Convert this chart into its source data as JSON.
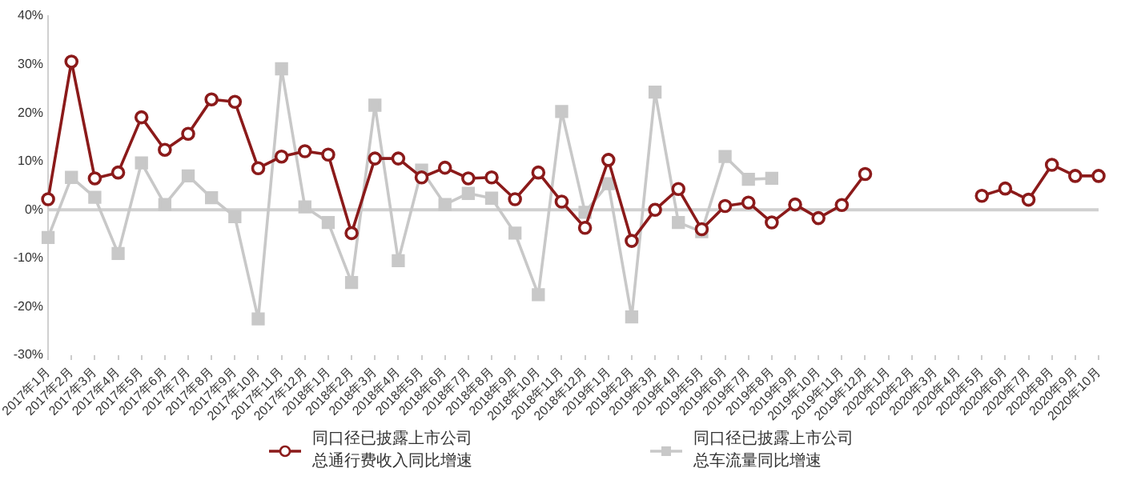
{
  "chart_data": {
    "type": "line",
    "categories": [
      "2017年1月",
      "2017年2月",
      "2017年3月",
      "2017年4月",
      "2017年5月",
      "2017年6月",
      "2017年7月",
      "2017年8月",
      "2017年9月",
      "2017年10月",
      "2017年11月",
      "2017年12月",
      "2018年1月",
      "2018年2月",
      "2018年3月",
      "2018年4月",
      "2018年5月",
      "2018年6月",
      "2018年7月",
      "2018年8月",
      "2018年9月",
      "2018年10月",
      "2018年11月",
      "2018年12月",
      "2019年1月",
      "2019年2月",
      "2019年3月",
      "2019年4月",
      "2019年5月",
      "2019年6月",
      "2019年7月",
      "2019年8月",
      "2019年9月",
      "2019年10月",
      "2019年11月",
      "2019年12月",
      "2020年1月",
      "2020年2月",
      "2020年3月",
      "2020年4月",
      "2020年5月",
      "2020年6月",
      "2020年7月",
      "2020年8月",
      "2020年9月",
      "2020年10月"
    ],
    "series": [
      {
        "name": "同口径已披露上市公司总通行费收入同比增速",
        "color": "#8b1a1a",
        "marker": "circle",
        "values": [
          2.2,
          30.6,
          6.5,
          7.7,
          19.1,
          12.4,
          15.7,
          22.8,
          22.3,
          8.6,
          11,
          12.1,
          11.4,
          -4.8,
          10.6,
          10.6,
          6.7,
          8.7,
          6.5,
          6.7,
          2.2,
          7.7,
          1.7,
          -3.7,
          10.3,
          -6.4,
          0,
          4.3,
          -4,
          0.8,
          1.5,
          -2.6,
          1.1,
          -1.7,
          1,
          7.4,
          null,
          null,
          null,
          null,
          2.9,
          4.4,
          2.1,
          9.3,
          7,
          7
        ]
      },
      {
        "name": "同口径已披露上市公司总车流量同比增速",
        "color": "#c8c8c8",
        "marker": "square",
        "values": [
          -5.7,
          6.7,
          2.6,
          -9,
          9.7,
          1.1,
          7,
          2.5,
          -1.4,
          -22.5,
          29.1,
          0.6,
          -2.6,
          -15,
          21.6,
          -10.5,
          8.2,
          1.1,
          3.4,
          2.4,
          -4.8,
          -17.5,
          20.3,
          -0.5,
          5.4,
          -22.1,
          24.3,
          -2.6,
          -4.5,
          11,
          6.3,
          6.5,
          null,
          null,
          null,
          null,
          null,
          null,
          null,
          null,
          null,
          null,
          null,
          null,
          null,
          null
        ]
      }
    ],
    "ylim": [
      -30,
      40
    ],
    "yticks": [
      {
        "value": -30,
        "label": "-30%"
      },
      {
        "value": -20,
        "label": "-20%"
      },
      {
        "value": -10,
        "label": "-10%"
      },
      {
        "value": 0,
        "label": "0%"
      },
      {
        "value": 10,
        "label": "10%"
      },
      {
        "value": 20,
        "label": "20%"
      },
      {
        "value": 30,
        "label": "30%"
      },
      {
        "value": 40,
        "label": "40%"
      }
    ],
    "ref_lines": [
      {
        "axis": "y",
        "value": 0,
        "color": "#d0d0d0"
      }
    ],
    "grid": false,
    "legend": "bottom",
    "line_style": "solid"
  }
}
